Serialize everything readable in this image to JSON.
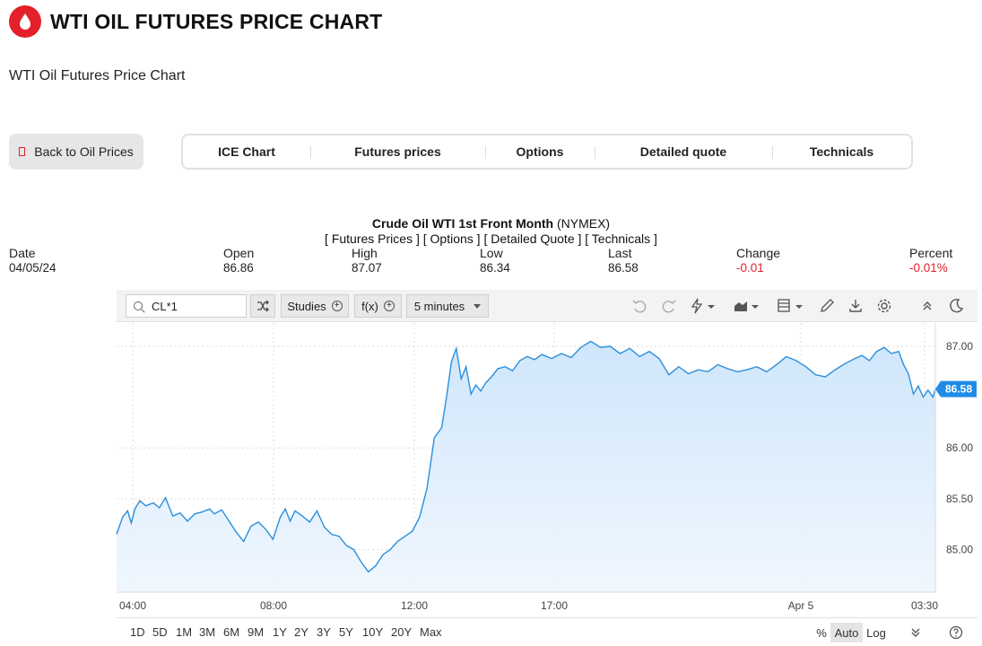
{
  "header": {
    "title": "WTI OIL FUTURES PRICE CHART"
  },
  "subtitle": "WTI Oil Futures Price Chart",
  "back_button": {
    "label": "Back to Oil Prices"
  },
  "tabs": [
    {
      "label": "ICE Chart"
    },
    {
      "label": "Futures prices"
    },
    {
      "label": "Options"
    },
    {
      "label": "Detailed quote"
    },
    {
      "label": "Technicals"
    }
  ],
  "chart_heading": {
    "name": "Crude Oil WTI 1st Front Month",
    "exchange": "(NYMEX)"
  },
  "chart_links": "[ Futures Prices ] [ Options ] [ Detailed Quote ] [ Technicals ]",
  "quote": {
    "date": {
      "label": "Date",
      "value": "04/05/24"
    },
    "open": {
      "label": "Open",
      "value": "86.86"
    },
    "high": {
      "label": "High",
      "value": "87.07"
    },
    "low": {
      "label": "Low",
      "value": "86.34"
    },
    "last": {
      "label": "Last",
      "value": "86.58"
    },
    "change": {
      "label": "Change",
      "value": "-0.01"
    },
    "percent": {
      "label": "Percent",
      "value": "-0.01%"
    }
  },
  "toolbar": {
    "symbol": "CL*1",
    "studies_label": "Studies",
    "fx_label": "f(x)",
    "interval_label": "5 minutes",
    "icons": [
      "search-icon",
      "shuffle-icon",
      "undo-icon",
      "redo-icon",
      "lightning-icon",
      "chart-type-icon",
      "layout-icon",
      "pencil-icon",
      "download-icon",
      "gear-icon",
      "collapse-icon",
      "moon-icon"
    ]
  },
  "bottom_bar": {
    "ranges": [
      "1D",
      "5D",
      "1M",
      "3M",
      "6M",
      "9M",
      "1Y",
      "2Y",
      "3Y",
      "5Y",
      "10Y",
      "20Y",
      "Max"
    ],
    "scales": [
      "%",
      "Auto",
      "Log"
    ],
    "active_scale": "Auto"
  },
  "colors": {
    "accent": "#e4202a",
    "line": "#2a8fdc",
    "fill_top": "#cfe6fb",
    "badge": "#1f8be6",
    "negative": "#e4202a"
  },
  "chart_data": {
    "type": "area",
    "title": "",
    "xlabel": "",
    "ylabel": "",
    "x_ticks": [
      "04:00",
      "08:00",
      "12:00",
      "17:00",
      "Apr 5",
      "03:30"
    ],
    "y_ticks": [
      "85.00",
      "85.50",
      "86.00",
      "87.00"
    ],
    "ylim": [
      84.58,
      87.23
    ],
    "grid": true,
    "last_price_label": "86.58",
    "series": [
      {
        "x": [
          0,
          0.25,
          0.45,
          0.6,
          0.75,
          0.95,
          1.2,
          1.5,
          1.75,
          2.0,
          2.3,
          2.6,
          2.9,
          3.2,
          3.5,
          3.8,
          4.0,
          4.3,
          4.6,
          4.9,
          5.2,
          5.5,
          5.8,
          6.1,
          6.4,
          6.7,
          6.9,
          7.1,
          7.3,
          7.6,
          7.9,
          8.2,
          8.5,
          8.8,
          9.1,
          9.4,
          9.7,
          10.0,
          10.3,
          10.6,
          10.9,
          11.2,
          11.5,
          11.8,
          12.1,
          12.4,
          12.7,
          13.0,
          13.3,
          13.5,
          13.7,
          13.9,
          14.1,
          14.3,
          14.5,
          14.7,
          14.9,
          15.1,
          15.3,
          15.6,
          15.9,
          16.2,
          16.5,
          16.8,
          17.1,
          17.4,
          17.8,
          18.2,
          18.6,
          19.0,
          19.4,
          19.8,
          20.2,
          20.6,
          21.0,
          21.4,
          21.8,
          22.2,
          22.6,
          23.0,
          23.4,
          23.8,
          24.2,
          24.6,
          25.0,
          25.4,
          25.8,
          26.2,
          26.6,
          27.0,
          27.4,
          27.8,
          28.2,
          28.6,
          29.0,
          29.4,
          29.8,
          30.2,
          30.5,
          30.8,
          31.1,
          31.4,
          31.7,
          32.0,
          32.2,
          32.4,
          32.6,
          32.8,
          33.0,
          33.2,
          33.4,
          33.5
        ],
        "y": [
          85.15,
          85.32,
          85.38,
          85.26,
          85.4,
          85.48,
          85.43,
          85.46,
          85.41,
          85.51,
          85.33,
          85.36,
          85.28,
          85.35,
          85.37,
          85.4,
          85.35,
          85.39,
          85.28,
          85.17,
          85.08,
          85.23,
          85.27,
          85.2,
          85.1,
          85.32,
          85.4,
          85.28,
          85.38,
          85.33,
          85.27,
          85.38,
          85.22,
          85.15,
          85.13,
          85.04,
          85.0,
          84.88,
          84.78,
          84.84,
          84.95,
          85.0,
          85.08,
          85.13,
          85.18,
          85.32,
          85.6,
          86.1,
          86.2,
          86.5,
          86.85,
          86.98,
          86.68,
          86.8,
          86.53,
          86.62,
          86.56,
          86.64,
          86.69,
          86.78,
          86.8,
          86.76,
          86.86,
          86.9,
          86.87,
          86.92,
          86.88,
          86.93,
          86.89,
          86.99,
          87.05,
          86.99,
          87.0,
          86.93,
          86.98,
          86.9,
          86.95,
          86.88,
          86.72,
          86.8,
          86.73,
          86.77,
          86.75,
          86.82,
          86.78,
          86.75,
          86.77,
          86.8,
          86.75,
          86.82,
          86.9,
          86.86,
          86.8,
          86.72,
          86.7,
          86.77,
          86.83,
          86.88,
          86.91,
          86.86,
          86.95,
          86.99,
          86.93,
          86.95,
          86.82,
          86.73,
          86.53,
          86.61,
          86.5,
          86.57,
          86.5,
          86.58
        ]
      }
    ]
  }
}
